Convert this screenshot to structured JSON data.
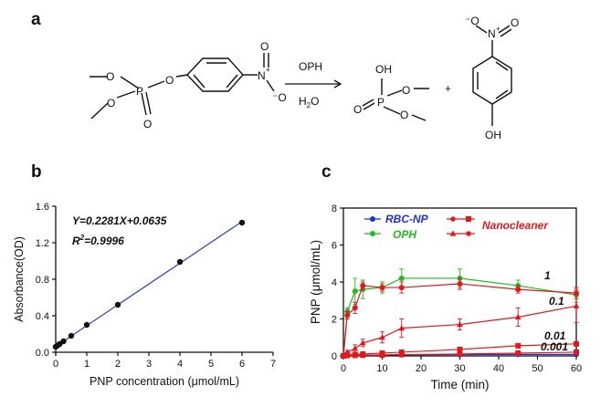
{
  "panels": {
    "a": "a",
    "b": "b",
    "c": "c"
  },
  "scheme": {
    "substituent_nitro_n": "N",
    "nitro_charge_plus": "+",
    "oxygen": "O",
    "oxygen_minus": "⁻O",
    "enzyme": "OPH",
    "solvent": "H2O",
    "plus": "+",
    "hydroxyl": "OH",
    "product_oh": "OH"
  },
  "chart_data": [
    {
      "panel": "b",
      "type": "scatter",
      "xlabel": "PNP concentration (μmol/mL)",
      "ylabel": "Absorbance(OD)",
      "xlim": [
        0,
        7
      ],
      "ylim": [
        0,
        1.6
      ],
      "x_ticks": [
        0,
        1,
        2,
        3,
        4,
        5,
        6,
        7
      ],
      "y_ticks": [
        0.0,
        0.4,
        0.8,
        1.2,
        1.6
      ],
      "points": {
        "x": [
          0,
          0.0625,
          0.125,
          0.25,
          0.5,
          1,
          2,
          4,
          6
        ],
        "y": [
          0.06,
          0.075,
          0.09,
          0.12,
          0.18,
          0.3,
          0.52,
          0.99,
          1.42
        ]
      },
      "fit": {
        "slope": 0.2281,
        "intercept": 0.0635,
        "color": "#2e3fb0"
      },
      "annotations": {
        "equation": "Y=0.2281X+0.0635",
        "r2_label": "R",
        "r2_sup": "2",
        "r2_value": "=0.9996"
      },
      "grid": false
    },
    {
      "panel": "c",
      "type": "line",
      "xlabel": "Time (min)",
      "ylabel": "PNP (μmol/mL)",
      "xlim": [
        0,
        60
      ],
      "ylim": [
        0,
        8
      ],
      "x_ticks": [
        0,
        10,
        20,
        30,
        40,
        50,
        60
      ],
      "y_ticks": [
        0,
        2,
        4,
        6,
        8
      ],
      "x": [
        0,
        1,
        3,
        5,
        10,
        15,
        30,
        45,
        60
      ],
      "series": [
        {
          "name": "RBC-NP",
          "color": "#1f2fd6",
          "marker": "circle",
          "values": [
            0,
            0.02,
            0.03,
            0.04,
            0.05,
            0.06,
            0.07,
            0.08,
            0.08
          ],
          "errors": [
            0,
            0.02,
            0.02,
            0.02,
            0.02,
            0.02,
            0.02,
            0.02,
            0.02
          ]
        },
        {
          "name": "OPH",
          "color": "#22b922",
          "marker": "circle",
          "values": [
            0,
            2.4,
            3.5,
            3.6,
            3.7,
            4.2,
            4.2,
            3.8,
            3.3
          ],
          "errors": [
            0,
            0.2,
            0.7,
            0.5,
            0.3,
            0.5,
            0.5,
            0.3,
            0.4
          ]
        },
        {
          "name": "1",
          "color": "#e0191f",
          "marker": "circle",
          "values": [
            0,
            2.2,
            2.6,
            3.8,
            3.7,
            3.7,
            3.9,
            3.6,
            3.4
          ],
          "errors": [
            0,
            0.2,
            0.3,
            0.2,
            0.2,
            0.3,
            0.3,
            0.2,
            0.3
          ]
        },
        {
          "name": "0.1",
          "color": "#e0191f",
          "marker": "triangle",
          "values": [
            0,
            0.2,
            0.4,
            0.7,
            1.0,
            1.5,
            1.7,
            2.1,
            2.7
          ],
          "errors": [
            0,
            0.1,
            0.2,
            0.2,
            0.3,
            0.5,
            0.3,
            0.5,
            0.9
          ]
        },
        {
          "name": "0.01",
          "color": "#e0191f",
          "marker": "square",
          "values": [
            0,
            0.05,
            0.08,
            0.1,
            0.15,
            0.2,
            0.35,
            0.55,
            0.65
          ],
          "errors": [
            0,
            0.03,
            0.03,
            0.03,
            0.04,
            0.05,
            0.05,
            0.06,
            0.08
          ]
        },
        {
          "name": "0.001",
          "color": "#e0191f",
          "marker": "square",
          "values": [
            0,
            0.02,
            0.03,
            0.04,
            0.05,
            0.07,
            0.1,
            0.15,
            0.2
          ],
          "errors": [
            0,
            0.02,
            0.02,
            0.02,
            0.02,
            0.02,
            0.02,
            0.03,
            0.03
          ]
        }
      ],
      "legend": {
        "entries": [
          "RBC-NP",
          "OPH",
          "Nanocleaner"
        ],
        "colors": [
          "#1f2fd6",
          "#22b922",
          "#e0191f"
        ]
      },
      "curve_labels": [
        "1",
        "0.1",
        "0.01",
        "0.001"
      ],
      "grid": false
    }
  ]
}
